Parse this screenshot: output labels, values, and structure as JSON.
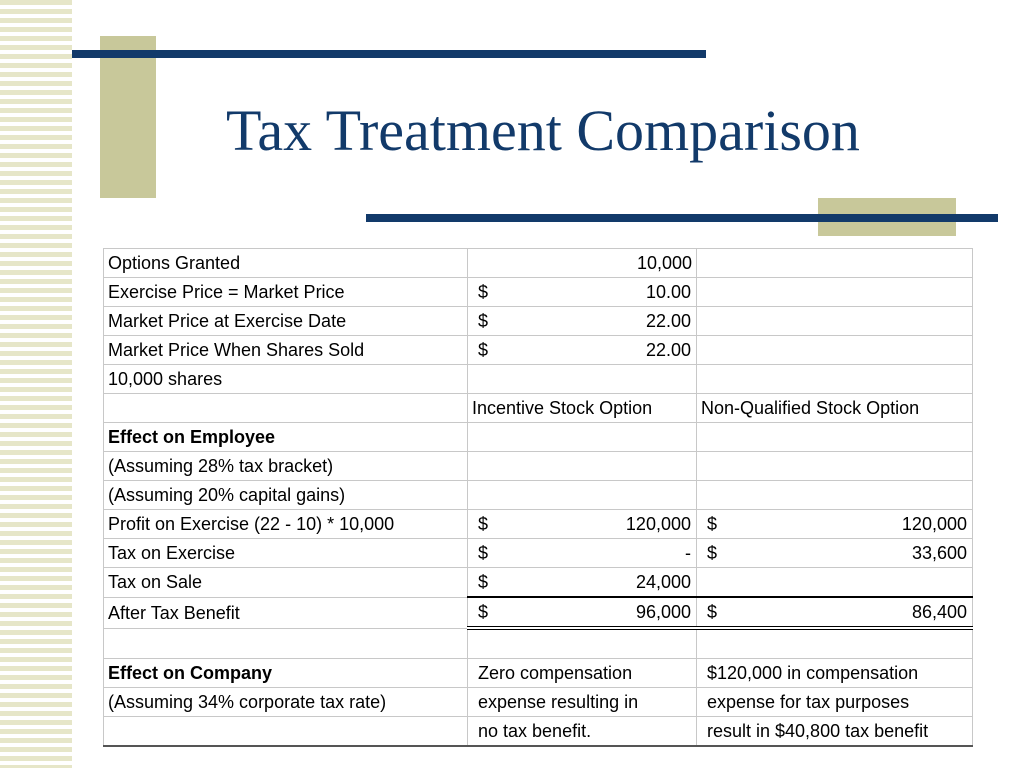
{
  "slide": {
    "title": "Tax Treatment Comparison"
  },
  "table": {
    "rows": [
      {
        "label": "Options Granted",
        "iso": "10,000"
      },
      {
        "label": "Exercise Price =  Market Price",
        "iso_cur": "$",
        "iso_val": "10.00"
      },
      {
        "label": "Market Price at Exercise Date",
        "iso_cur": "$",
        "iso_val": "22.00"
      },
      {
        "label": "Market Price When Shares Sold",
        "iso_cur": "$",
        "iso_val": "22.00"
      },
      {
        "label": "10,000 shares"
      },
      {
        "iso_header": "Incentive Stock Option",
        "nqso_header": "Non-Qualified Stock Option"
      },
      {
        "label": "Effect on Employee"
      },
      {
        "label": "(Assuming 28% tax bracket)"
      },
      {
        "label": "(Assuming 20% capital gains)"
      },
      {
        "label": "Profit on Exercise (22 - 10) * 10,000",
        "iso_cur": "$",
        "iso_val": "120,000",
        "nqso_cur": "$",
        "nqso_val": "120,000"
      },
      {
        "label": "Tax on Exercise",
        "iso_cur": "$",
        "iso_val": "-",
        "nqso_cur": "$",
        "nqso_val": "33,600"
      },
      {
        "label": "Tax on Sale",
        "iso_cur": "$",
        "iso_val": "24,000"
      },
      {
        "label": "After Tax Benefit",
        "iso_cur": "$",
        "iso_val": "96,000",
        "nqso_cur": "$",
        "nqso_val": "86,400"
      },
      {},
      {
        "label": "Effect on Company",
        "iso": "Zero compensation",
        "nqso": "$120,000 in compensation"
      },
      {
        "label": "(Assuming 34% corporate tax rate)",
        "iso": "expense resulting in",
        "nqso": "expense for tax purposes"
      },
      {
        "iso": "no tax benefit.",
        "nqso": "result in $40,800 tax benefit"
      }
    ]
  }
}
